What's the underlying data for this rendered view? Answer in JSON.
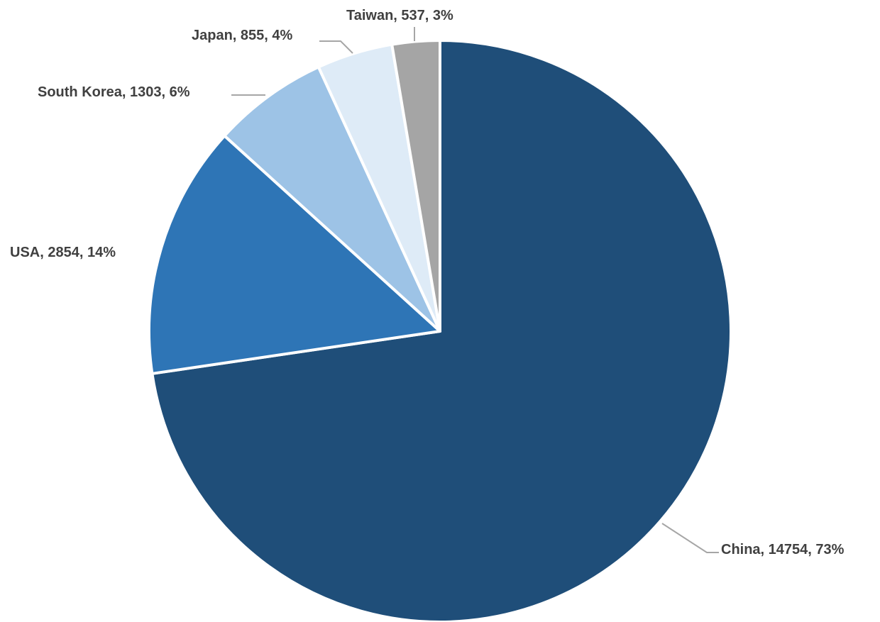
{
  "chart_data": {
    "type": "pie",
    "title": "",
    "start_angle_deg": 0,
    "direction": "clockwise",
    "slices": [
      {
        "label": "China",
        "value": 14754,
        "percent": "73%",
        "color": "#1f4e79"
      },
      {
        "label": "USA",
        "value": 2854,
        "percent": "14%",
        "color": "#2e75b6"
      },
      {
        "label": "South Korea",
        "value": 1303,
        "percent": "6%",
        "color": "#9dc3e6"
      },
      {
        "label": "Japan",
        "value": 855,
        "percent": "4%",
        "color": "#deebf7"
      },
      {
        "label": "Taiwan",
        "value": 537,
        "percent": "3%",
        "color": "#a5a5a5"
      }
    ],
    "data_labels": [
      "China, 14754, 73%",
      "USA, 2854, 14%",
      "South Korea, 1303, 6%",
      "Japan, 855, 4%",
      "Taiwan, 537, 3%"
    ],
    "legend": "none",
    "label_color": "#404040",
    "leader_line_color": "#a6a6a6"
  }
}
